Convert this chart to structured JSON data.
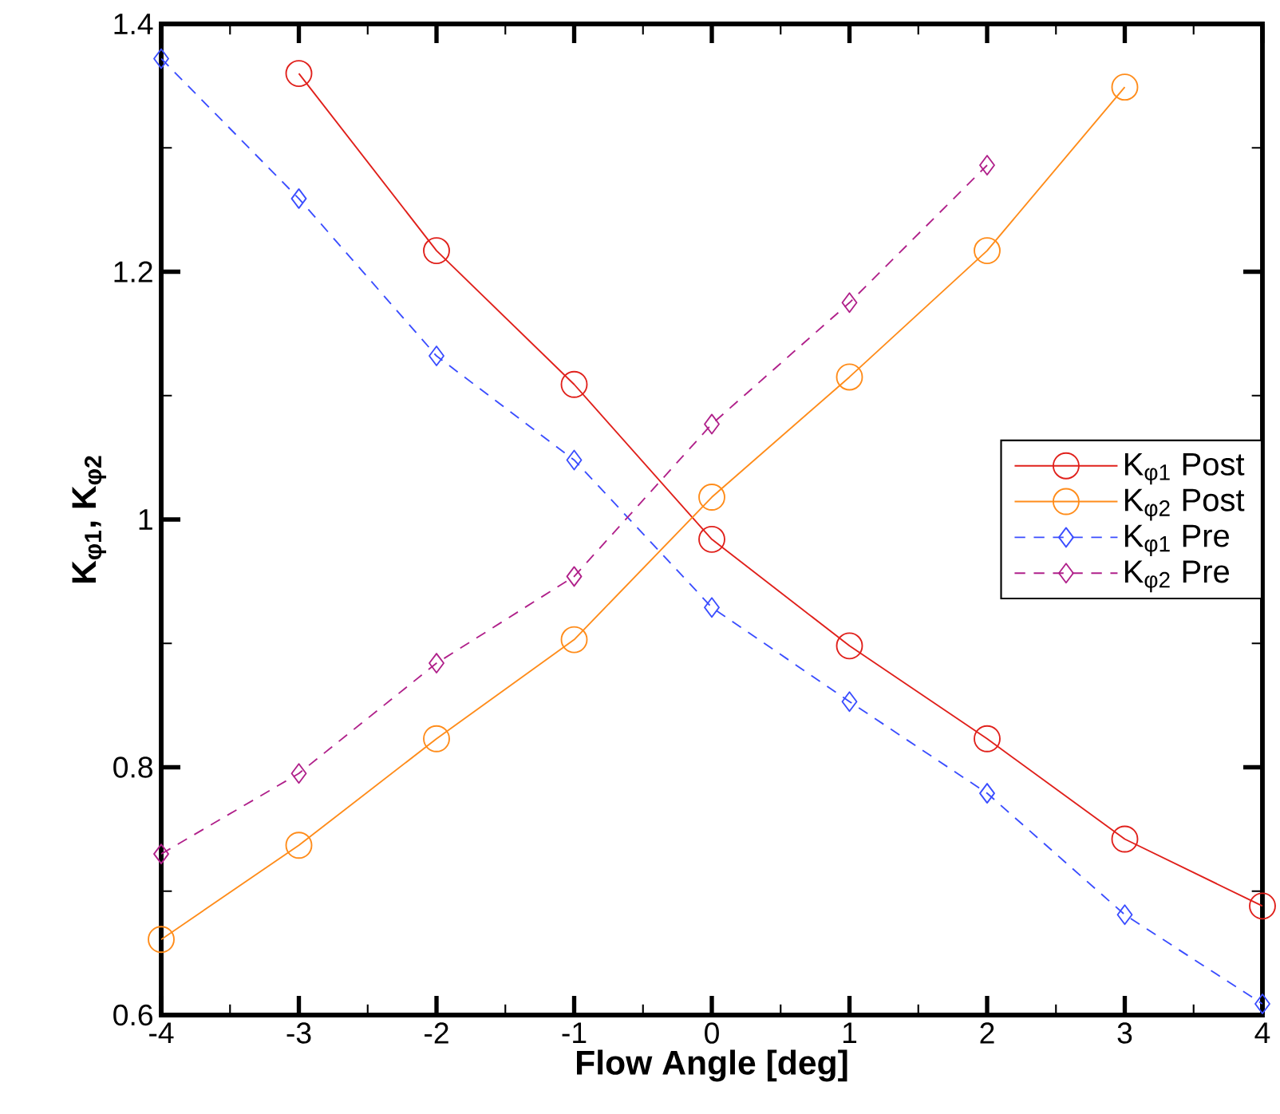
{
  "chart_data": {
    "type": "line",
    "xlabel": "Flow Angle [deg]",
    "ylabel": "**K$_{φ1}$, K$_{φ2}$**",
    "x": [
      -4,
      -3,
      -2,
      -1,
      0,
      1,
      2,
      3,
      4
    ],
    "xlim": [
      -4,
      4
    ],
    "xticks": [
      -4,
      -3,
      -2,
      -1,
      0,
      1,
      2,
      3,
      4
    ],
    "ylim": [
      0.6,
      1.4
    ],
    "yticks": [
      0.6,
      0.8,
      1,
      1.2,
      1.4
    ],
    "grid": false,
    "legend": "right",
    "series": [
      {
        "name": "K$_{φ1}$ Post",
        "color": "#e0201b",
        "marker": "circle",
        "line_style": "solid",
        "values": [
          null,
          1.36,
          1.217,
          1.109,
          0.984,
          0.898,
          0.823,
          0.742,
          0.688
        ]
      },
      {
        "name": "K$_{φ2}$ Post",
        "color": "#ff8c1a",
        "marker": "circle",
        "line_style": "solid",
        "values": [
          0.661,
          0.737,
          0.823,
          0.903,
          1.018,
          1.115,
          1.217,
          1.349,
          null
        ]
      },
      {
        "name": "K$_{φ1}$ Pre",
        "color": "#3a4dff",
        "marker": "diamond",
        "line_style": "dashed",
        "values": [
          1.372,
          1.259,
          1.132,
          1.048,
          0.929,
          0.853,
          0.779,
          0.681,
          0.609
        ]
      },
      {
        "name": "K$_{φ2}$ Pre",
        "color": "#b0208a",
        "marker": "diamond",
        "line_style": "dashed",
        "values": [
          0.73,
          0.795,
          0.884,
          0.954,
          1.077,
          1.175,
          1.286,
          null,
          null
        ]
      }
    ]
  }
}
